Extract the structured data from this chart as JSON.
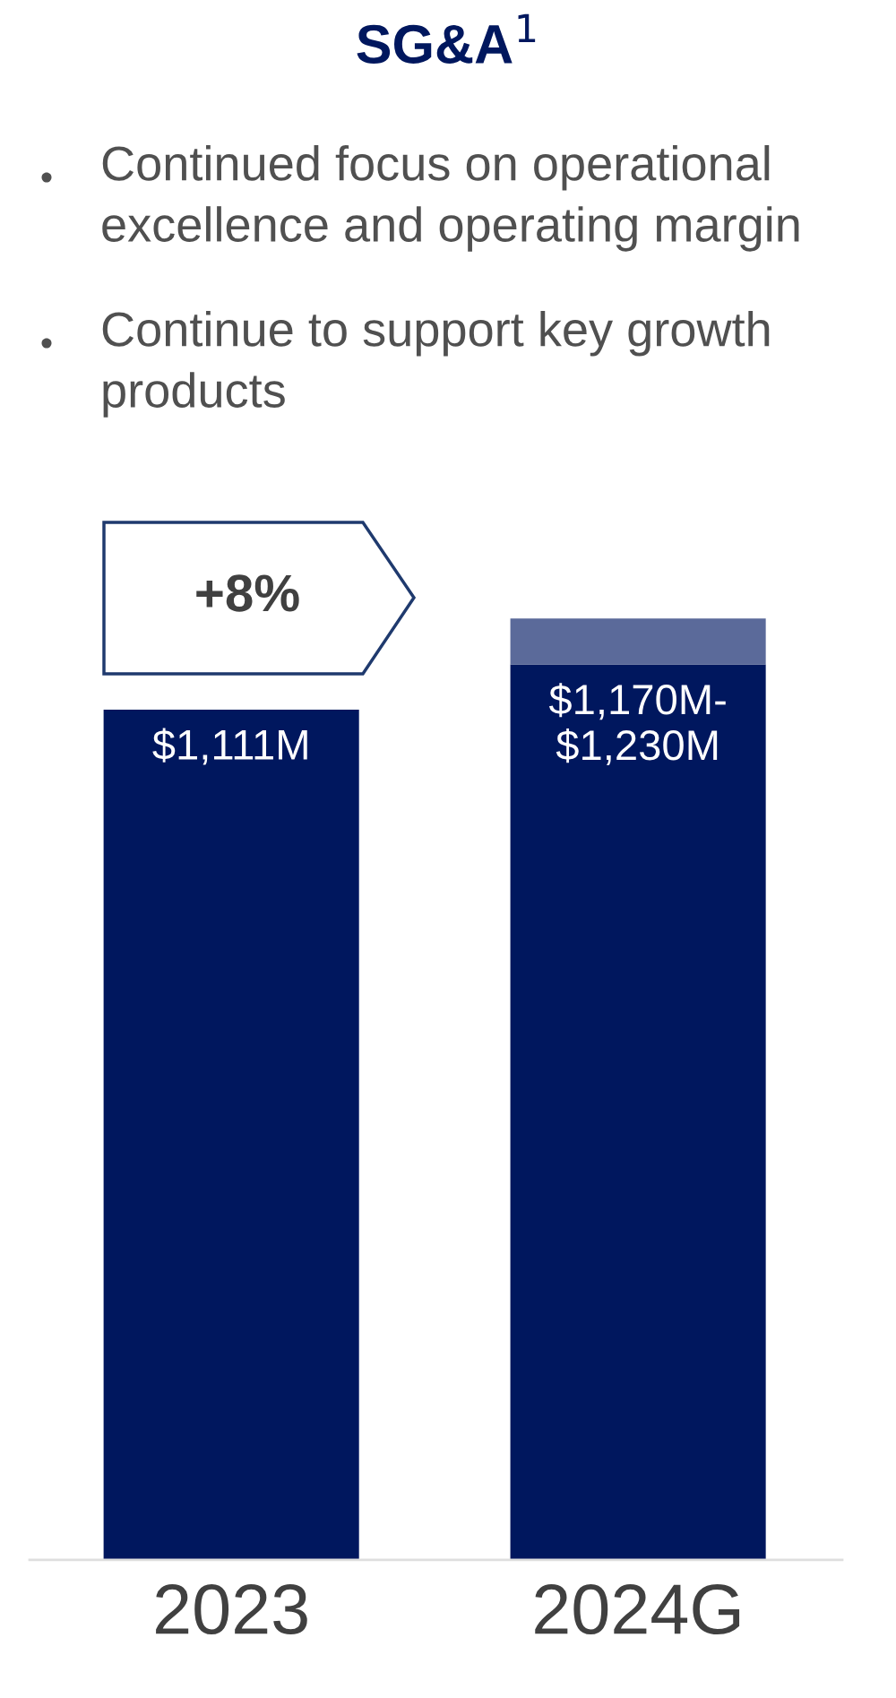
{
  "chart_data": {
    "type": "bar",
    "title": "SG&A$^{1}$",
    "annotations": [
      "Continued focus on operational\nexcellence and operating margin",
      "Continue to support key growth\nproducts",
      "+8%",
      {
        "text": "$1,170M-\n$1,230M",
        "x": "2024G",
        "y": 1170
      }
    ],
    "categories": [
      "2023",
      "2024G"
    ],
    "stacked": true,
    "series": [
      {
        "color": "#00175e",
        "values": [
          1111,
          1170
        ],
        "value_labels": [
          "$1,111M",
          null
        ]
      },
      {
        "color": "#5b6a9a",
        "values": [
          null,
          60
        ]
      }
    ],
    "tick_labels": "x",
    "grid": false,
    "legend": false
  }
}
